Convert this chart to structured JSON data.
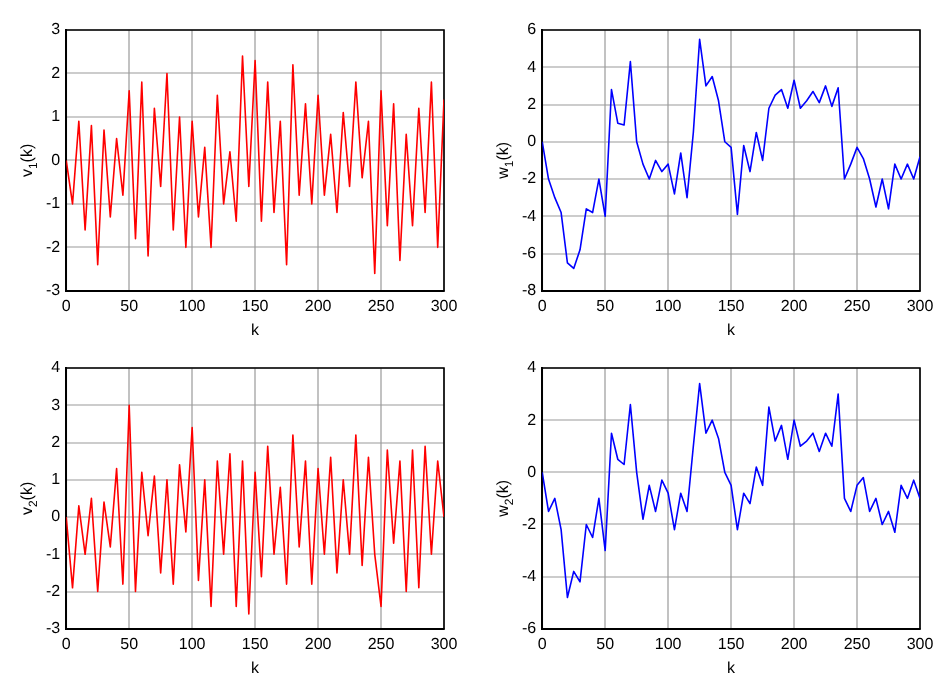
{
  "chart_data": [
    {
      "type": "line",
      "xlabel": "k",
      "ylabel": "v$_{1}$(k)",
      "xlim": [
        0,
        300
      ],
      "xticks": [
        0,
        50,
        100,
        150,
        200,
        250,
        300
      ],
      "ylim": [
        -3,
        3
      ],
      "yticks": [
        -3,
        -2,
        -1,
        0,
        1,
        2,
        3
      ],
      "grid": true,
      "legend": false,
      "marker": "none",
      "line_style": "solid",
      "x": [
        0,
        5,
        10,
        15,
        20,
        25,
        30,
        35,
        40,
        45,
        50,
        55,
        60,
        65,
        70,
        75,
        80,
        85,
        90,
        95,
        100,
        105,
        110,
        115,
        120,
        125,
        130,
        135,
        140,
        145,
        150,
        155,
        160,
        165,
        170,
        175,
        180,
        185,
        190,
        195,
        200,
        205,
        210,
        215,
        220,
        225,
        230,
        235,
        240,
        245,
        250,
        255,
        260,
        265,
        270,
        275,
        280,
        285,
        290,
        295,
        300
      ],
      "series": [
        {
          "color": "#ff0000",
          "values": [
            0,
            -1,
            0.9,
            -1.6,
            0.8,
            -2.4,
            0.7,
            -1.3,
            0.5,
            -0.8,
            1.6,
            -1.8,
            1.8,
            -2.2,
            1.2,
            -0.6,
            2.0,
            -1.6,
            1.0,
            -2.0,
            0.9,
            -1.3,
            0.3,
            -2.0,
            1.5,
            -1.0,
            0.2,
            -1.4,
            2.4,
            -0.6,
            2.3,
            -1.4,
            1.8,
            -1.2,
            0.9,
            -2.4,
            2.2,
            -0.8,
            1.3,
            -1.0,
            1.5,
            -0.8,
            0.6,
            -1.2,
            1.1,
            -0.6,
            1.8,
            -0.4,
            0.9,
            -2.6,
            1.6,
            -1.5,
            1.3,
            -2.3,
            0.6,
            -1.5,
            1.2,
            -1.2,
            1.8,
            -2.0,
            1.4
          ]
        }
      ]
    },
    {
      "type": "line",
      "xlabel": "k",
      "ylabel": "w$_{1}$(k)",
      "xlim": [
        0,
        300
      ],
      "xticks": [
        0,
        50,
        100,
        150,
        200,
        250,
        300
      ],
      "ylim": [
        -8,
        6
      ],
      "yticks": [
        -8,
        -6,
        -4,
        -2,
        0,
        2,
        4,
        6
      ],
      "grid": true,
      "legend": false,
      "marker": "none",
      "line_style": "solid",
      "x": [
        0,
        5,
        10,
        15,
        20,
        25,
        30,
        35,
        40,
        45,
        50,
        55,
        60,
        65,
        70,
        75,
        80,
        85,
        90,
        95,
        100,
        105,
        110,
        115,
        120,
        125,
        130,
        135,
        140,
        145,
        150,
        155,
        160,
        165,
        170,
        175,
        180,
        185,
        190,
        195,
        200,
        205,
        210,
        215,
        220,
        225,
        230,
        235,
        240,
        245,
        250,
        255,
        260,
        265,
        270,
        275,
        280,
        285,
        290,
        295,
        300
      ],
      "series": [
        {
          "color": "#0000ff",
          "values": [
            0,
            -2,
            -3,
            -3.8,
            -6.5,
            -6.8,
            -5.8,
            -3.6,
            -3.8,
            -2.0,
            -4.0,
            2.8,
            1.0,
            0.9,
            4.3,
            0.0,
            -1.2,
            -2.0,
            -1.0,
            -1.6,
            -1.2,
            -2.8,
            -0.6,
            -3.0,
            0.5,
            5.5,
            3.0,
            3.5,
            2.2,
            0.0,
            -0.3,
            -3.9,
            -0.2,
            -1.6,
            0.5,
            -1.0,
            1.8,
            2.5,
            2.8,
            1.8,
            3.3,
            1.8,
            2.2,
            2.7,
            2.1,
            3.0,
            1.9,
            2.9,
            -2.0,
            -1.2,
            -0.3,
            -0.9,
            -2.0,
            -3.5,
            -2.0,
            -3.6,
            -1.2,
            -2.0,
            -1.2,
            -2.0,
            -0.8
          ]
        }
      ]
    },
    {
      "type": "line",
      "xlabel": "k",
      "ylabel": "v$_{2}$(k)",
      "xlim": [
        0,
        300
      ],
      "xticks": [
        0,
        50,
        100,
        150,
        200,
        250,
        300
      ],
      "ylim": [
        -3,
        4
      ],
      "yticks": [
        -3,
        -2,
        -1,
        0,
        1,
        2,
        3,
        4
      ],
      "grid": true,
      "legend": false,
      "marker": "none",
      "line_style": "solid",
      "x": [
        0,
        5,
        10,
        15,
        20,
        25,
        30,
        35,
        40,
        45,
        50,
        55,
        60,
        65,
        70,
        75,
        80,
        85,
        90,
        95,
        100,
        105,
        110,
        115,
        120,
        125,
        130,
        135,
        140,
        145,
        150,
        155,
        160,
        165,
        170,
        175,
        180,
        185,
        190,
        195,
        200,
        205,
        210,
        215,
        220,
        225,
        230,
        235,
        240,
        245,
        250,
        255,
        260,
        265,
        270,
        275,
        280,
        285,
        290,
        295,
        300
      ],
      "series": [
        {
          "color": "#ff0000",
          "values": [
            0,
            -1.9,
            0.3,
            -1.0,
            0.5,
            -2.0,
            0.4,
            -0.8,
            1.3,
            -1.8,
            3.0,
            -2.0,
            1.2,
            -0.5,
            1.1,
            -1.5,
            1.0,
            -1.8,
            1.4,
            -0.4,
            2.4,
            -1.7,
            1.0,
            -2.4,
            1.5,
            -1.0,
            1.7,
            -2.4,
            1.5,
            -2.6,
            1.2,
            -1.6,
            1.9,
            -1.0,
            0.8,
            -1.8,
            2.2,
            -0.8,
            1.5,
            -1.8,
            1.3,
            -1.0,
            1.6,
            -1.5,
            1.0,
            -1.0,
            2.2,
            -1.3,
            1.6,
            -1.0,
            -2.4,
            1.8,
            -0.7,
            1.5,
            -2.0,
            1.8,
            -1.9,
            1.9,
            -1.0,
            1.5,
            0
          ]
        }
      ]
    },
    {
      "type": "line",
      "xlabel": "k",
      "ylabel": "w$_{2}$(k)",
      "xlim": [
        0,
        300
      ],
      "xticks": [
        0,
        50,
        100,
        150,
        200,
        250,
        300
      ],
      "ylim": [
        -6,
        4
      ],
      "yticks": [
        -6,
        -4,
        -2,
        0,
        2,
        4
      ],
      "grid": true,
      "legend": false,
      "marker": "none",
      "line_style": "solid",
      "x": [
        0,
        5,
        10,
        15,
        20,
        25,
        30,
        35,
        40,
        45,
        50,
        55,
        60,
        65,
        70,
        75,
        80,
        85,
        90,
        95,
        100,
        105,
        110,
        115,
        120,
        125,
        130,
        135,
        140,
        145,
        150,
        155,
        160,
        165,
        170,
        175,
        180,
        185,
        190,
        195,
        200,
        205,
        210,
        215,
        220,
        225,
        230,
        235,
        240,
        245,
        250,
        255,
        260,
        265,
        270,
        275,
        280,
        285,
        290,
        295,
        300
      ],
      "series": [
        {
          "color": "#0000ff",
          "values": [
            0,
            -1.5,
            -1.0,
            -2.2,
            -4.8,
            -3.8,
            -4.2,
            -2.0,
            -2.5,
            -1.0,
            -3.0,
            1.5,
            0.5,
            0.3,
            2.6,
            0.0,
            -1.8,
            -0.5,
            -1.5,
            -0.3,
            -0.8,
            -2.2,
            -0.8,
            -1.5,
            1.0,
            3.4,
            1.5,
            2.0,
            1.3,
            0.0,
            -0.5,
            -2.2,
            -0.8,
            -1.2,
            0.2,
            -0.5,
            2.5,
            1.2,
            1.8,
            0.5,
            2.0,
            1.0,
            1.2,
            1.5,
            0.8,
            1.5,
            1.0,
            3.0,
            -1.0,
            -1.5,
            -0.5,
            -0.2,
            -1.5,
            -1.0,
            -2.0,
            -1.5,
            -2.3,
            -0.5,
            -1.0,
            -0.3,
            -1.0
          ]
        }
      ]
    }
  ]
}
